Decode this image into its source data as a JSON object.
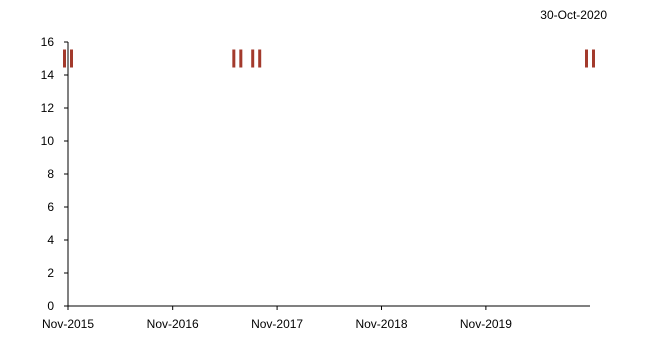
{
  "date_stamp": "30-Oct-2020",
  "colors": {
    "marker": "#a33a2c",
    "axis": "#000000"
  },
  "chart_data": {
    "type": "scatter",
    "title": "",
    "xlabel": "",
    "ylabel": "",
    "marker": "double-bar",
    "x_ticks": [
      "Nov-2015",
      "Nov-2016",
      "Nov-2017",
      "Nov-2018",
      "Nov-2019"
    ],
    "xlim": [
      "2015-11-01",
      "2020-10-30"
    ],
    "ylim": [
      0,
      16
    ],
    "y_ticks": [
      0,
      2,
      4,
      6,
      8,
      10,
      12,
      14,
      16
    ],
    "grid": false,
    "legend": "none",
    "series": [
      {
        "x": [
          "2015-11-01",
          "2017-06-15",
          "2017-08-20",
          "2020-10-30"
        ],
        "values": [
          15,
          15,
          15,
          15
        ]
      }
    ]
  }
}
